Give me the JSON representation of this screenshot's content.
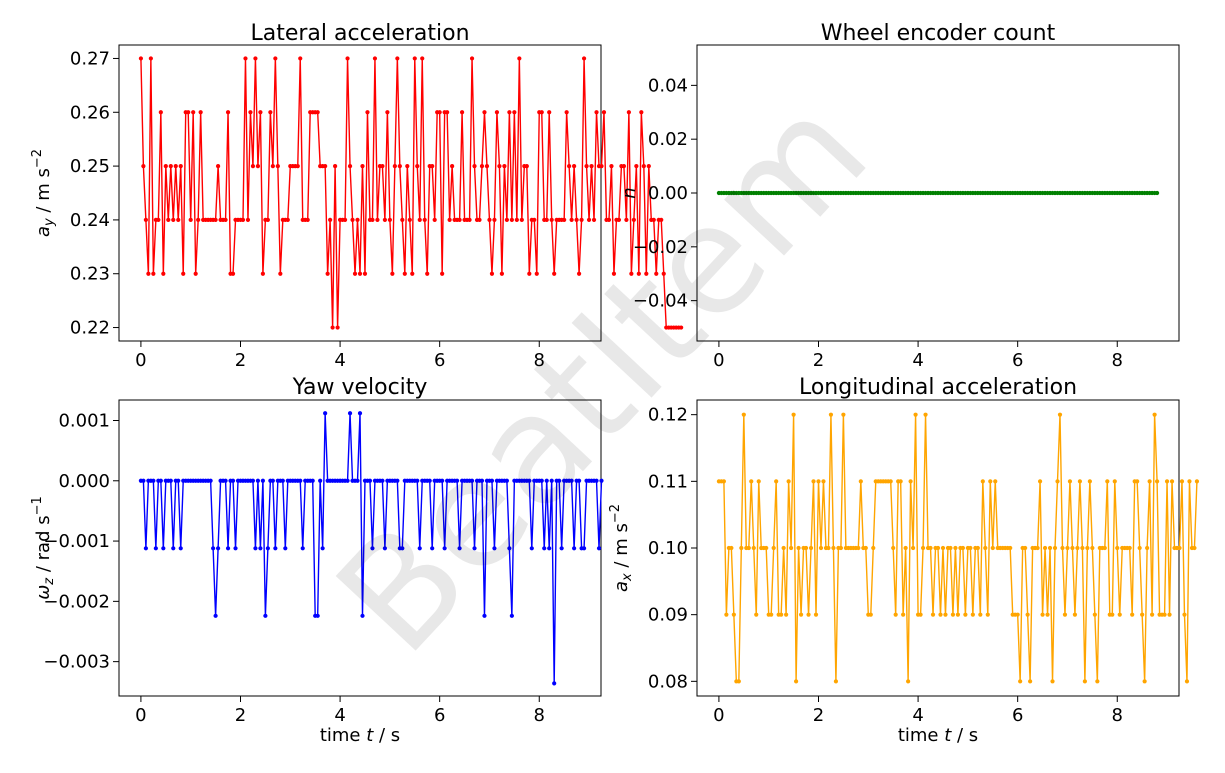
{
  "watermark": "BeatItem",
  "chart_data": [
    {
      "type": "line",
      "title": "Lateral acceleration",
      "xlabel": "",
      "ylabel": "a_y / m s^-2",
      "ylabel_parts": {
        "sym": "a",
        "sub": "y",
        "unit": " / m s",
        "sup": "−2"
      },
      "color": "#ff0000",
      "xlim": [
        -0.44,
        9.24
      ],
      "ylim": [
        0.2175,
        0.2725
      ],
      "xticks": [
        "0",
        "2",
        "4",
        "6",
        "8"
      ],
      "xtick_values": [
        0,
        2,
        4,
        6,
        8
      ],
      "yticks": [
        "0.22",
        "0.23",
        "0.24",
        "0.25",
        "0.26",
        "0.27"
      ],
      "ytick_values": [
        0.22,
        0.23,
        0.24,
        0.25,
        0.26,
        0.27
      ],
      "x_start": 0,
      "x_step": 0.05,
      "values": [
        0.27,
        0.25,
        0.24,
        0.23,
        0.27,
        0.23,
        0.24,
        0.24,
        0.26,
        0.23,
        0.25,
        0.24,
        0.25,
        0.24,
        0.25,
        0.24,
        0.25,
        0.23,
        0.26,
        0.26,
        0.24,
        0.26,
        0.23,
        0.24,
        0.26,
        0.24,
        0.24,
        0.24,
        0.24,
        0.24,
        0.24,
        0.25,
        0.24,
        0.24,
        0.24,
        0.26,
        0.23,
        0.23,
        0.24,
        0.24,
        0.24,
        0.24,
        0.27,
        0.24,
        0.26,
        0.25,
        0.27,
        0.25,
        0.26,
        0.23,
        0.24,
        0.24,
        0.26,
        0.25,
        0.27,
        0.25,
        0.23,
        0.24,
        0.24,
        0.24,
        0.25,
        0.25,
        0.25,
        0.25,
        0.27,
        0.24,
        0.24,
        0.24,
        0.26,
        0.26,
        0.26,
        0.26,
        0.25,
        0.25,
        0.25,
        0.23,
        0.24,
        0.22,
        0.25,
        0.22,
        0.24,
        0.24,
        0.24,
        0.27,
        0.25,
        0.24,
        0.23,
        0.24,
        0.23,
        0.25,
        0.23,
        0.26,
        0.24,
        0.24,
        0.27,
        0.24,
        0.25,
        0.25,
        0.24,
        0.26,
        0.24,
        0.23,
        0.25,
        0.27,
        0.25,
        0.24,
        0.23,
        0.25,
        0.24,
        0.23,
        0.27,
        0.25,
        0.24,
        0.27,
        0.24,
        0.23,
        0.25,
        0.25,
        0.24,
        0.26,
        0.26,
        0.23,
        0.26,
        0.26,
        0.24,
        0.25,
        0.24,
        0.24,
        0.24,
        0.26,
        0.24,
        0.24,
        0.24,
        0.27,
        0.25,
        0.24,
        0.24,
        0.25,
        0.26,
        0.25,
        0.24,
        0.23,
        0.24,
        0.26,
        0.25,
        0.23,
        0.25,
        0.24,
        0.26,
        0.24,
        0.26,
        0.24,
        0.27,
        0.24,
        0.25,
        0.25,
        0.23,
        0.24,
        0.24,
        0.23,
        0.26,
        0.26,
        0.24,
        0.24,
        0.26,
        0.24,
        0.23,
        0.24,
        0.24,
        0.24,
        0.24,
        0.26,
        0.25,
        0.24,
        0.25,
        0.24,
        0.23,
        0.24,
        0.27,
        0.25,
        0.24,
        0.25,
        0.24,
        0.26,
        0.25,
        0.25,
        0.26,
        0.24,
        0.24,
        0.25,
        0.23,
        0.24,
        0.24,
        0.25,
        0.25,
        0.24,
        0.26,
        0.23,
        0.24,
        0.25,
        0.23,
        0.26,
        0.25,
        0.23,
        0.25,
        0.24,
        0.24,
        0.23,
        0.24,
        0.24,
        0.23,
        0.22,
        0.22,
        0.22,
        0.22,
        0.22,
        0.22,
        0.22
      ]
    },
    {
      "type": "line",
      "title": "Wheel encoder count",
      "xlabel": "",
      "ylabel": "n",
      "ylabel_parts": {
        "sym": "n",
        "sub": "",
        "unit": "",
        "sup": ""
      },
      "color": "#008000",
      "xlim": [
        -0.44,
        9.24
      ],
      "ylim": [
        -0.055,
        0.055
      ],
      "xticks": [
        "0",
        "2",
        "4",
        "6",
        "8"
      ],
      "xtick_values": [
        0,
        2,
        4,
        6,
        8
      ],
      "yticks": [
        "−0.04",
        "−0.02",
        "0.00",
        "0.02",
        "0.04"
      ],
      "ytick_values": [
        -0.04,
        -0.02,
        0.0,
        0.02,
        0.04
      ],
      "x_start": 0,
      "x_step": 0.05,
      "constant_value": 0,
      "count": 177
    },
    {
      "type": "line",
      "title": "Yaw velocity",
      "xlabel": "time t / s",
      "xlabel_parts": {
        "pre": "time ",
        "sym": "t",
        "post": " / s"
      },
      "ylabel": "ω_z / rad s^-1",
      "ylabel_parts": {
        "sym": "ω",
        "sub": "z",
        "unit": " / rad s",
        "sup": "−1"
      },
      "color": "#0000ff",
      "xlim": [
        -0.44,
        9.24
      ],
      "ylim": [
        -0.00357,
        0.00134
      ],
      "xticks": [
        "0",
        "2",
        "4",
        "6",
        "8"
      ],
      "xtick_values": [
        0,
        2,
        4,
        6,
        8
      ],
      "yticks": [
        "−0.003",
        "−0.002",
        "−0.001",
        "0.000",
        "0.001"
      ],
      "ytick_values": [
        -0.003,
        -0.002,
        -0.001,
        0.0,
        0.001
      ],
      "x_start": 0,
      "x_step": 0.05,
      "values": [
        0,
        0,
        -0.00112,
        0,
        0,
        0,
        -0.00112,
        0,
        0,
        -0.00112,
        0,
        0,
        0,
        -0.00112,
        0,
        0,
        -0.00112,
        0,
        0,
        0,
        0,
        0,
        0,
        0,
        0,
        0,
        0,
        0,
        0,
        -0.00112,
        -0.00224,
        -0.00112,
        0,
        0,
        0,
        -0.00112,
        0,
        0,
        -0.00112,
        0,
        0,
        0,
        0,
        0,
        0,
        0,
        -0.00112,
        0,
        -0.00112,
        0,
        -0.00224,
        -0.00112,
        0,
        0,
        -0.00112,
        0,
        0,
        0,
        -0.00112,
        0,
        0,
        0,
        0,
        0,
        0,
        -0.00112,
        0,
        0,
        0,
        0,
        -0.00224,
        -0.00224,
        0,
        -0.00112,
        0.00112,
        0,
        0,
        0,
        0,
        0,
        0,
        0,
        0,
        0,
        0.00112,
        0,
        0,
        0,
        0.00112,
        -0.00224,
        0,
        0,
        0,
        -0.00112,
        0,
        0,
        0,
        0,
        -0.00112,
        0,
        0,
        0,
        0,
        0,
        -0.00112,
        -0.00112,
        0,
        0,
        0,
        0,
        0,
        0,
        -0.00112,
        0,
        0,
        0,
        0,
        -0.00112,
        0,
        0,
        0,
        0,
        -0.00112,
        0,
        0,
        0,
        0,
        0,
        -0.00112,
        0,
        0,
        0,
        0,
        0,
        -0.00112,
        0,
        0,
        0,
        -0.00224,
        0,
        0,
        0,
        -0.00112,
        0,
        0,
        0,
        0,
        0,
        -0.00112,
        -0.00224,
        0,
        0,
        0,
        0,
        0,
        0,
        0,
        -0.00112,
        0,
        0,
        0,
        0,
        -0.00112,
        0,
        -0.00112,
        0,
        -0.00336,
        0,
        0,
        -0.00112,
        0,
        0,
        0,
        0,
        -0.00112,
        0,
        0,
        -0.00112,
        -0.00112,
        0,
        0,
        0,
        0,
        0,
        -0.00112,
        0
      ]
    },
    {
      "type": "line",
      "title": "Longitudinal acceleration",
      "xlabel": "time t / s",
      "xlabel_parts": {
        "pre": "time ",
        "sym": "t",
        "post": " / s"
      },
      "ylabel": "a_x / m s^-2",
      "ylabel_parts": {
        "sym": "a",
        "sub": "x",
        "unit": " / m s",
        "sup": "−2"
      },
      "color": "#ffa500",
      "xlim": [
        -0.44,
        9.24
      ],
      "ylim": [
        0.0778,
        0.1222
      ],
      "xticks": [
        "0",
        "2",
        "4",
        "6",
        "8"
      ],
      "xtick_values": [
        0,
        2,
        4,
        6,
        8
      ],
      "yticks": [
        "0.08",
        "0.09",
        "0.10",
        "0.11",
        "0.12"
      ],
      "ytick_values": [
        0.08,
        0.09,
        0.1,
        0.11,
        0.12
      ],
      "x_start": 0,
      "x_step": 0.05,
      "values": [
        0.11,
        0.11,
        0.11,
        0.09,
        0.1,
        0.1,
        0.09,
        0.08,
        0.08,
        0.1,
        0.12,
        0.1,
        0.1,
        0.11,
        0.1,
        0.09,
        0.11,
        0.1,
        0.1,
        0.1,
        0.09,
        0.09,
        0.1,
        0.11,
        0.09,
        0.09,
        0.1,
        0.09,
        0.11,
        0.1,
        0.12,
        0.08,
        0.1,
        0.09,
        0.1,
        0.1,
        0.09,
        0.1,
        0.11,
        0.09,
        0.11,
        0.1,
        0.11,
        0.1,
        0.1,
        0.12,
        0.1,
        0.08,
        0.1,
        0.1,
        0.12,
        0.1,
        0.1,
        0.1,
        0.1,
        0.1,
        0.1,
        0.11,
        0.1,
        0.1,
        0.09,
        0.09,
        0.1,
        0.11,
        0.11,
        0.11,
        0.11,
        0.11,
        0.11,
        0.11,
        0.1,
        0.09,
        0.11,
        0.11,
        0.09,
        0.1,
        0.08,
        0.11,
        0.1,
        0.12,
        0.09,
        0.09,
        0.1,
        0.12,
        0.1,
        0.1,
        0.09,
        0.1,
        0.1,
        0.09,
        0.1,
        0.09,
        0.1,
        0.1,
        0.09,
        0.1,
        0.09,
        0.1,
        0.1,
        0.09,
        0.1,
        0.1,
        0.09,
        0.1,
        0.1,
        0.09,
        0.11,
        0.1,
        0.09,
        0.11,
        0.1,
        0.11,
        0.1,
        0.1,
        0.1,
        0.1,
        0.1,
        0.1,
        0.09,
        0.09,
        0.09,
        0.08,
        0.1,
        0.1,
        0.09,
        0.08,
        0.1,
        0.1,
        0.1,
        0.11,
        0.09,
        0.1,
        0.09,
        0.1,
        0.08,
        0.1,
        0.11,
        0.12,
        0.1,
        0.09,
        0.1,
        0.11,
        0.1,
        0.09,
        0.1,
        0.11,
        0.1,
        0.08,
        0.1,
        0.11,
        0.1,
        0.09,
        0.08,
        0.1,
        0.1,
        0.1,
        0.11,
        0.09,
        0.09,
        0.11,
        0.1,
        0.09,
        0.1,
        0.1,
        0.1,
        0.1,
        0.09,
        0.11,
        0.11,
        0.1,
        0.09,
        0.08,
        0.1,
        0.11,
        0.09,
        0.12,
        0.11,
        0.09,
        0.09,
        0.09,
        0.11,
        0.09,
        0.11,
        0.1,
        0.1,
        0.1,
        0.11,
        0.09,
        0.08,
        0.11,
        0.1,
        0.1,
        0.11
      ]
    }
  ]
}
